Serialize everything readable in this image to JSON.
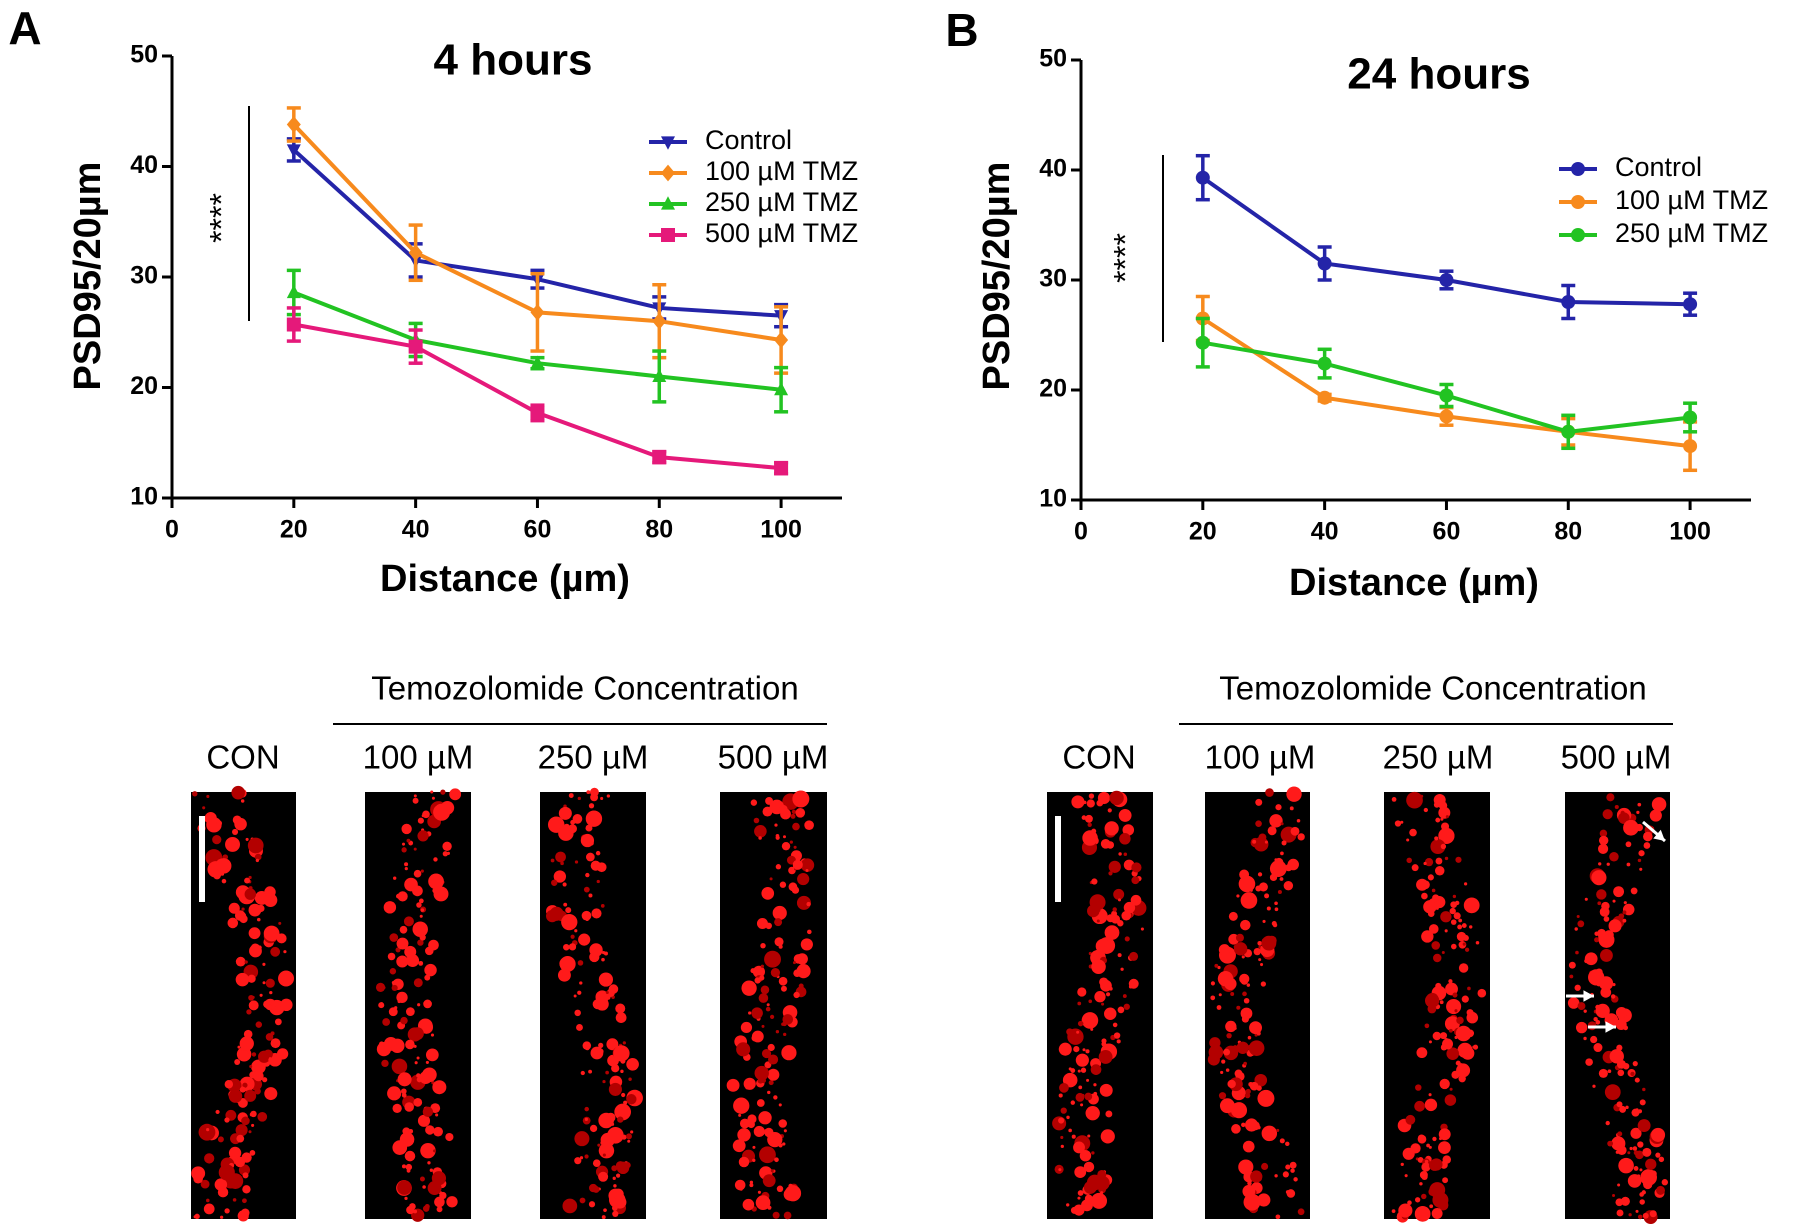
{
  "chart_data": [
    {
      "type": "line",
      "panel_label": "A",
      "title": "4 hours",
      "xlabel": "Distance (µm)",
      "ylabel": "PSD95/20µm",
      "x": [
        20,
        40,
        60,
        80,
        100
      ],
      "xlim": [
        0,
        110
      ],
      "xticks": [
        0,
        20,
        40,
        60,
        80,
        100
      ],
      "ylim": [
        10,
        50
      ],
      "yticks": [
        10,
        20,
        30,
        40,
        50
      ],
      "legend": "upper right",
      "significance": "****",
      "series": [
        {
          "name": "Control",
          "color": "#2424a8",
          "marker": "triangle-down",
          "values": [
            41.5,
            31.5,
            29.8,
            27.2,
            26.5
          ],
          "errors": [
            1.0,
            1.5,
            0.8,
            1.0,
            1.0
          ]
        },
        {
          "name": "100 µM TMZ",
          "color": "#f78a1d",
          "marker": "diamond",
          "values": [
            43.8,
            32.2,
            26.8,
            26.0,
            24.3
          ],
          "errors": [
            1.5,
            2.5,
            3.5,
            3.3,
            3.0
          ]
        },
        {
          "name": "250 µM TMZ",
          "color": "#22c322",
          "marker": "triangle-up",
          "values": [
            28.6,
            24.3,
            22.2,
            21.0,
            19.8
          ],
          "errors": [
            2.0,
            1.5,
            0.5,
            2.3,
            2.0
          ]
        },
        {
          "name": "500 µM TMZ",
          "color": "#e5197a",
          "marker": "square",
          "values": [
            25.7,
            23.7,
            17.7,
            13.7,
            12.7
          ],
          "errors": [
            1.5,
            1.5,
            0.7,
            0.5,
            0.5
          ]
        }
      ],
      "image_header": "Temozolomide Concentration",
      "image_labels": [
        "CON",
        "100 µM",
        "250 µM",
        "500 µM"
      ]
    },
    {
      "type": "line",
      "panel_label": "B",
      "title": "24 hours",
      "xlabel": "Distance (µm)",
      "ylabel": "PSD95/20µm",
      "x": [
        20,
        40,
        60,
        80,
        100
      ],
      "xlim": [
        0,
        110
      ],
      "xticks": [
        0,
        20,
        40,
        60,
        80,
        100
      ],
      "ylim": [
        10,
        50
      ],
      "yticks": [
        10,
        20,
        30,
        40,
        50
      ],
      "legend": "upper right",
      "significance": "****",
      "series": [
        {
          "name": "Control",
          "color": "#2424a8",
          "marker": "circle",
          "values": [
            39.3,
            31.5,
            30.0,
            28.0,
            27.8
          ],
          "errors": [
            2.0,
            1.5,
            0.8,
            1.5,
            1.0
          ]
        },
        {
          "name": "100 µM TMZ",
          "color": "#f78a1d",
          "marker": "circle",
          "values": [
            26.5,
            19.3,
            17.6,
            16.2,
            14.9
          ],
          "errors": [
            2.0,
            0.3,
            0.8,
            1.2,
            2.2
          ]
        },
        {
          "name": "250 µM TMZ",
          "color": "#22c322",
          "marker": "circle",
          "values": [
            24.3,
            22.4,
            19.5,
            16.2,
            17.5
          ],
          "errors": [
            2.2,
            1.3,
            1.0,
            1.5,
            1.3
          ]
        }
      ],
      "image_header": "Temozolomide Concentration",
      "image_labels": [
        "CON",
        "100 µM",
        "250 µM",
        "500 µM"
      ]
    }
  ]
}
